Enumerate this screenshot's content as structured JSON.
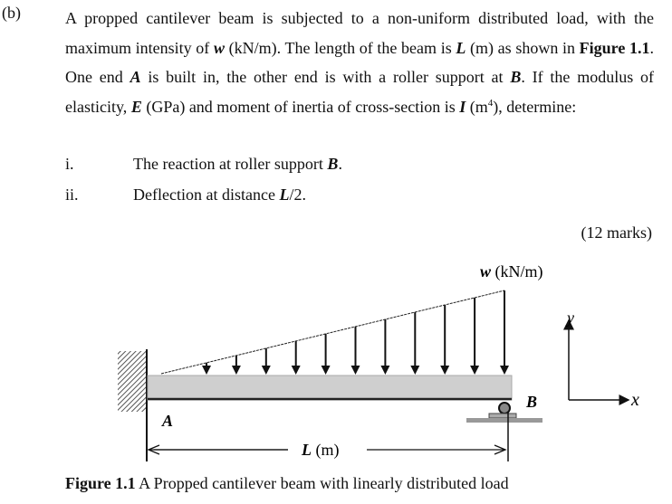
{
  "question": {
    "label": "(b)",
    "segments": [
      {
        "t": "A propped cantilever beam is subjected to a non-uniform distributed load, with the maximum intensity of ",
        "s": ""
      },
      {
        "t": "w",
        "s": "bi"
      },
      {
        "t": " (kN/m). The length of the beam is ",
        "s": ""
      },
      {
        "t": "L",
        "s": "bi"
      },
      {
        "t": " (m) as shown in ",
        "s": ""
      },
      {
        "t": "Figure 1.1",
        "s": "b"
      },
      {
        "t": ". One end ",
        "s": ""
      },
      {
        "t": "A",
        "s": "bi"
      },
      {
        "t": " is built in, the other end is with a roller support at ",
        "s": ""
      },
      {
        "t": "B",
        "s": "bi"
      },
      {
        "t": ". If the modulus of elasticity, ",
        "s": ""
      },
      {
        "t": "E",
        "s": "bi"
      },
      {
        "t": " (GPa) and moment of inertia of cross-section is ",
        "s": ""
      },
      {
        "t": "I",
        "s": "bi"
      },
      {
        "t": " (m",
        "s": ""
      },
      {
        "t": "4",
        "s": "sup"
      },
      {
        "t": "), determine:",
        "s": ""
      }
    ],
    "items": [
      {
        "num": "i.",
        "text": "The reaction at roller support ",
        "bold": "B",
        "end": "."
      },
      {
        "num": "ii.",
        "text": "Deflection at distance ",
        "bold": "L",
        "end": "/2."
      }
    ],
    "marks": "(12 marks)"
  },
  "figure": {
    "load_label_var": "w",
    "load_label_unit": " (kN/m)",
    "end_a": "A",
    "end_b": "B",
    "length_var": "L",
    "length_unit": " (m)",
    "axis_y": "y",
    "axis_x": "x",
    "caption_bold": "Figure 1.1",
    "caption_text": " A Propped cantilever beam with linearly distributed load"
  }
}
